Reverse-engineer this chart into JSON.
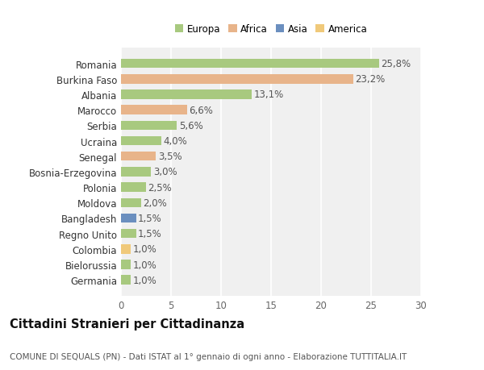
{
  "countries": [
    "Germania",
    "Bielorussia",
    "Colombia",
    "Regno Unito",
    "Bangladesh",
    "Moldova",
    "Polonia",
    "Bosnia-Erzegovina",
    "Senegal",
    "Ucraina",
    "Serbia",
    "Marocco",
    "Albania",
    "Burkina Faso",
    "Romania"
  ],
  "values": [
    1.0,
    1.0,
    1.0,
    1.5,
    1.5,
    2.0,
    2.5,
    3.0,
    3.5,
    4.0,
    5.6,
    6.6,
    13.1,
    23.2,
    25.8
  ],
  "labels": [
    "1,0%",
    "1,0%",
    "1,0%",
    "1,5%",
    "1,5%",
    "2,0%",
    "2,5%",
    "3,0%",
    "3,5%",
    "4,0%",
    "5,6%",
    "6,6%",
    "13,1%",
    "23,2%",
    "25,8%"
  ],
  "continents": [
    "Europa",
    "Europa",
    "America",
    "Europa",
    "Asia",
    "Europa",
    "Europa",
    "Europa",
    "Africa",
    "Europa",
    "Europa",
    "Africa",
    "Europa",
    "Africa",
    "Europa"
  ],
  "colors": {
    "Europa": "#a8c97f",
    "Africa": "#e8b48a",
    "Asia": "#6b8fbf",
    "America": "#f0c97a"
  },
  "legend_order": [
    "Europa",
    "Africa",
    "Asia",
    "America"
  ],
  "xlim": [
    0,
    30
  ],
  "xticks": [
    0,
    5,
    10,
    15,
    20,
    25,
    30
  ],
  "title": "Cittadini Stranieri per Cittadinanza",
  "subtitle": "COMUNE DI SEQUALS (PN) - Dati ISTAT al 1° gennaio di ogni anno - Elaborazione TUTTITALIA.IT",
  "background_color": "#ffffff",
  "plot_background": "#f0f0f0",
  "grid_color": "#ffffff",
  "bar_height": 0.6,
  "label_fontsize": 8.5,
  "tick_fontsize": 8.5,
  "title_fontsize": 10.5,
  "subtitle_fontsize": 7.5
}
